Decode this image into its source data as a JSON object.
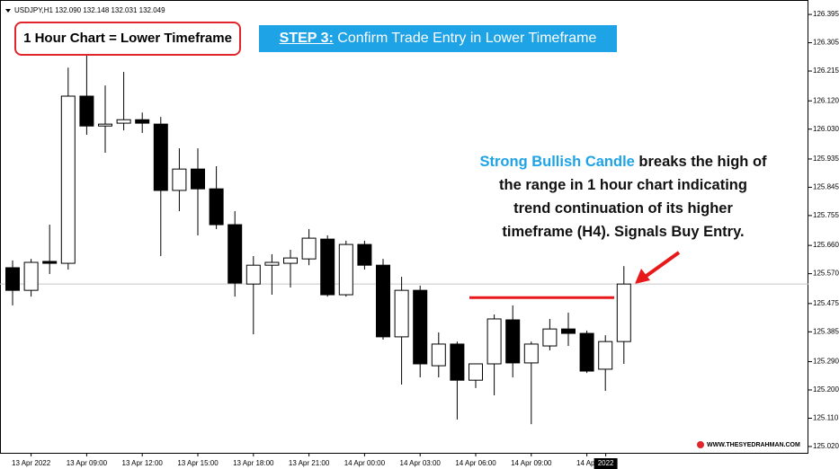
{
  "chart_data": {
    "type": "candlestick",
    "header": "USDJPY,H1  132.090 132.148 132.031 132.049",
    "label_box": "1 Hour Chart = Lower Timeframe",
    "step": {
      "prefix": "STEP 3:",
      "text": " Confirm Trade Entry in Lower Timeframe"
    },
    "annotation": {
      "highlight": "Strong Bullish Candle",
      "lines": [
        " breaks the high of",
        "the range in 1 hour chart indicating",
        "trend continuation of its higher",
        "timeframe (H4). Signals Buy Entry."
      ]
    },
    "watermark": "WWW.THESYEDRAHMAN.COM",
    "x_labels": [
      "13 Apr 2022",
      "13 Apr 09:00",
      "13 Apr 12:00",
      "13 Apr 15:00",
      "13 Apr 18:00",
      "13 Apr 21:00",
      "14 Apr 00:00",
      "14 Apr 03:00",
      "14 Apr 06:00",
      "14 Apr 09:00",
      "14 Apr",
      "2022"
    ],
    "open": [
      125.589,
      125.517,
      125.609,
      125.603,
      126.135,
      126.04,
      126.049,
      126.06,
      126.046,
      125.835,
      125.903,
      125.84,
      125.726,
      125.537,
      125.597,
      125.603,
      125.617,
      125.68,
      125.503,
      125.663,
      125.597,
      125.369,
      125.517,
      125.277,
      125.346,
      125.231,
      125.283,
      125.423,
      125.286,
      125.34,
      125.394,
      125.38,
      125.266,
      125.354
    ],
    "high": [
      125.612,
      125.617,
      125.726,
      126.226,
      126.312,
      126.169,
      126.212,
      126.083,
      126.069,
      125.969,
      125.969,
      125.912,
      125.769,
      125.626,
      125.632,
      125.646,
      125.712,
      125.692,
      125.675,
      125.675,
      125.617,
      125.56,
      125.532,
      125.383,
      125.354,
      125.283,
      125.44,
      125.469,
      125.354,
      125.426,
      125.446,
      125.389,
      125.374,
      125.594
    ],
    "low": [
      125.469,
      125.497,
      125.569,
      125.583,
      126.012,
      125.955,
      126.026,
      126.018,
      125.626,
      125.769,
      125.692,
      125.712,
      125.497,
      125.377,
      125.503,
      125.526,
      125.597,
      125.497,
      125.497,
      125.583,
      125.36,
      125.217,
      125.24,
      125.24,
      125.106,
      125.206,
      125.183,
      125.24,
      125.091,
      125.326,
      125.34,
      125.254,
      125.197,
      125.283
    ],
    "close": [
      125.517,
      125.606,
      125.603,
      126.135,
      126.04,
      126.046,
      126.06,
      126.049,
      125.835,
      125.903,
      125.84,
      125.726,
      125.54,
      125.597,
      125.606,
      125.62,
      125.683,
      125.503,
      125.663,
      125.597,
      125.369,
      125.517,
      125.283,
      125.346,
      125.231,
      125.283,
      125.426,
      125.286,
      125.346,
      125.394,
      125.38,
      125.26,
      125.354,
      125.537
    ],
    "up_color": "#ffffff",
    "down_color": "#000000",
    "current_price": 125.537,
    "range_high": 125.494,
    "range_color": "#e8191b",
    "ylim": [
      124.997,
      126.441
    ],
    "yticks": [
      126.395,
      126.305,
      126.215,
      {
        "value": 126.12,
        "label": "126.120"
      },
      {
        "value": 126.03,
        "label": "126.030"
      },
      125.935,
      125.845,
      125.755,
      {
        "value": 125.66,
        "label": "125.660"
      },
      {
        "value": 125.57,
        "label": "125.570"
      },
      125.475,
      125.385,
      {
        "value": 125.29,
        "label": "125.290"
      },
      {
        "value": 125.2,
        "label": "125.200"
      },
      {
        "value": 125.11,
        "label": "125.110"
      },
      {
        "value": 125.02,
        "label": "125.020"
      }
    ]
  }
}
